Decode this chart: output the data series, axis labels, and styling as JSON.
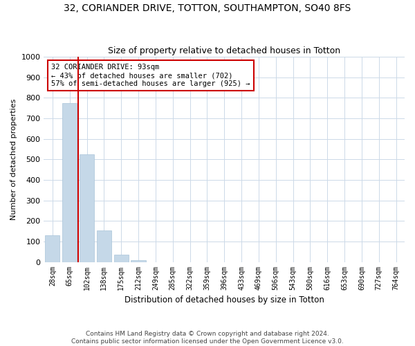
{
  "title": "32, CORIANDER DRIVE, TOTTON, SOUTHAMPTON, SO40 8FS",
  "subtitle": "Size of property relative to detached houses in Totton",
  "xlabel": "Distribution of detached houses by size in Totton",
  "ylabel": "Number of detached properties",
  "categories": [
    "28sqm",
    "65sqm",
    "102sqm",
    "138sqm",
    "175sqm",
    "212sqm",
    "249sqm",
    "285sqm",
    "322sqm",
    "359sqm",
    "396sqm",
    "433sqm",
    "469sqm",
    "506sqm",
    "543sqm",
    "580sqm",
    "616sqm",
    "653sqm",
    "690sqm",
    "727sqm",
    "764sqm"
  ],
  "values": [
    130,
    775,
    525,
    155,
    35,
    10,
    0,
    0,
    0,
    0,
    0,
    0,
    0,
    0,
    0,
    0,
    0,
    0,
    0,
    0,
    0
  ],
  "bar_color": "#c5d8e8",
  "bar_edge_color": "#a8c4d8",
  "highlight_line_color": "#cc0000",
  "property_label": "32 CORIANDER DRIVE: 93sqm",
  "annotation_line1": "← 43% of detached houses are smaller (702)",
  "annotation_line2": "57% of semi-detached houses are larger (925) →",
  "annotation_box_color": "#cc0000",
  "ylim": [
    0,
    1000
  ],
  "yticks": [
    0,
    100,
    200,
    300,
    400,
    500,
    600,
    700,
    800,
    900,
    1000
  ],
  "footer_line1": "Contains HM Land Registry data © Crown copyright and database right 2024.",
  "footer_line2": "Contains public sector information licensed under the Open Government Licence v3.0.",
  "background_color": "#ffffff",
  "grid_color": "#ccd9e8"
}
